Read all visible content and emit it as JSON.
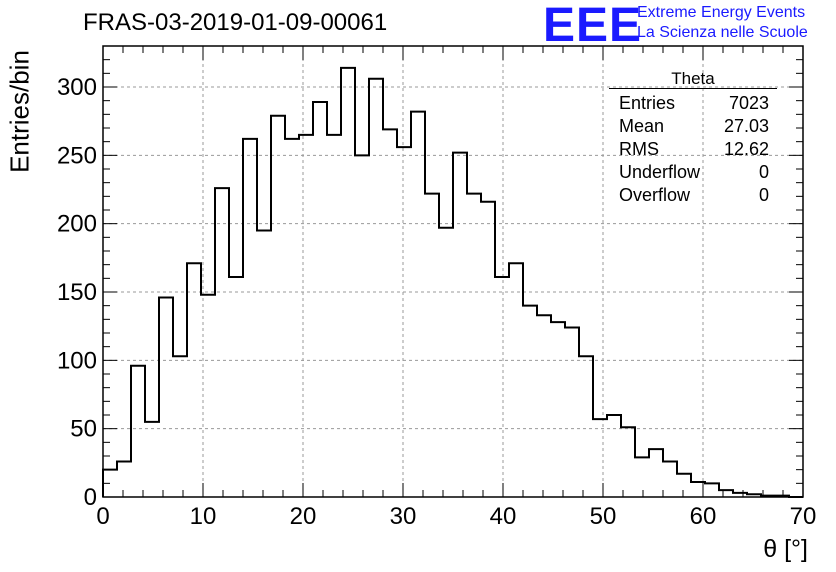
{
  "header": {
    "run_title": "FRAS-03-2019-01-09-00061",
    "logo_text": "EEE",
    "logo_line1": "Extreme Energy Events",
    "logo_line2": "La Scienza nelle Scuole",
    "logo_color": "#1a1aff"
  },
  "stats_box": {
    "title": "Theta",
    "rows": [
      {
        "label": "Entries",
        "value": "7023"
      },
      {
        "label": "Mean",
        "value": "27.03"
      },
      {
        "label": "RMS",
        "value": "12.62"
      },
      {
        "label": "Underflow",
        "value": "0"
      },
      {
        "label": "Overflow",
        "value": "0"
      }
    ]
  },
  "chart_data": {
    "type": "bar",
    "style": "step-histogram",
    "xlabel": "θ [°]",
    "ylabel": "Entries/bin",
    "xlim": [
      0,
      70
    ],
    "ylim": [
      0,
      330
    ],
    "bin_width": 1.4,
    "x_ticks": [
      "0",
      "10",
      "20",
      "30",
      "40",
      "50",
      "60",
      "70"
    ],
    "y_ticks": [
      "0",
      "50",
      "100",
      "150",
      "200",
      "250",
      "300"
    ],
    "grid": true,
    "values": [
      20,
      26,
      96,
      55,
      146,
      103,
      171,
      148,
      226,
      161,
      262,
      195,
      279,
      262,
      265,
      289,
      265,
      314,
      250,
      306,
      269,
      256,
      282,
      222,
      197,
      252,
      222,
      216,
      161,
      171,
      140,
      133,
      128,
      124,
      103,
      57,
      60,
      51,
      29,
      35,
      26,
      17,
      11,
      10,
      5,
      3,
      2,
      1,
      1,
      0
    ]
  }
}
